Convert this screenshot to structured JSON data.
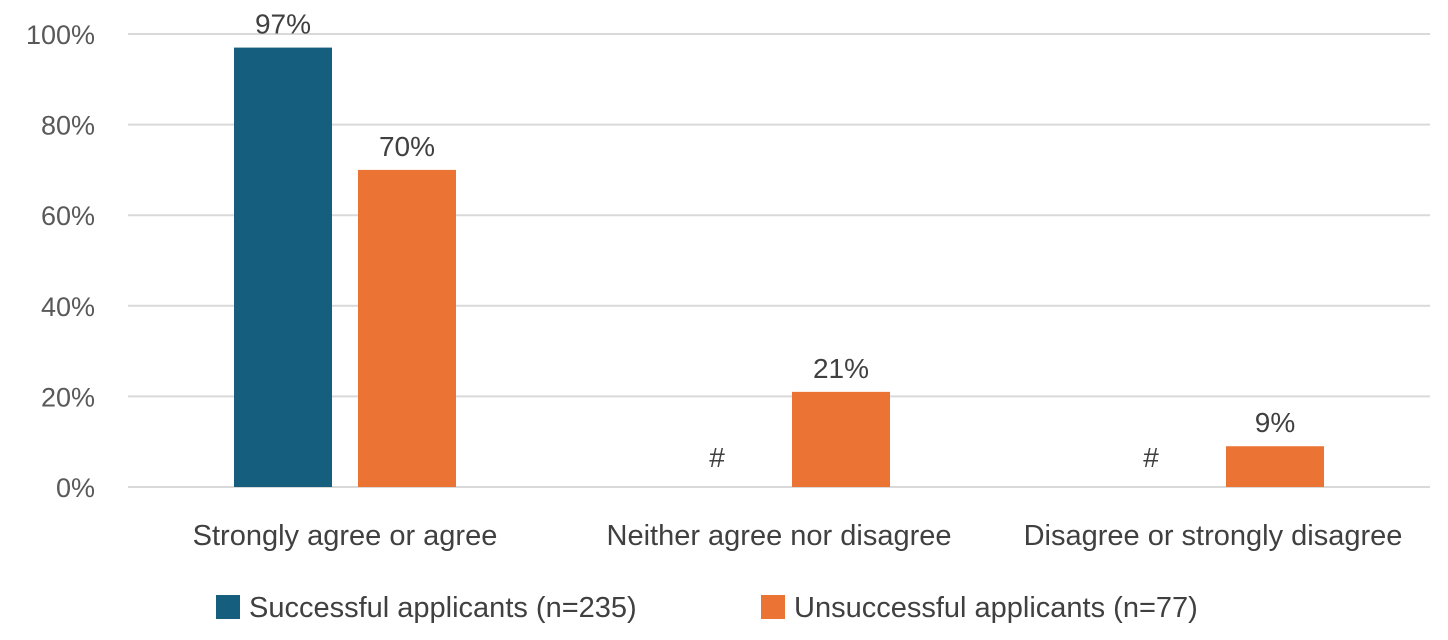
{
  "chart_data": {
    "type": "bar",
    "categories": [
      "Strongly agree or agree",
      "Neither agree nor disagree",
      "Disagree or strongly disagree"
    ],
    "series": [
      {
        "name": "Successful applicants (n=235)",
        "color": "#165e7d",
        "values": [
          97,
          null,
          null
        ],
        "labels": [
          "97%",
          "#",
          "#"
        ]
      },
      {
        "name": "Unsuccessful applicants (n=77)",
        "color": "#eb7333",
        "values": [
          70,
          21,
          9
        ],
        "labels": [
          "70%",
          "21%",
          "9%"
        ]
      }
    ],
    "yticks": [
      "0%",
      "20%",
      "40%",
      "60%",
      "80%",
      "100%"
    ],
    "ylim": [
      0,
      100
    ],
    "grid": true,
    "legend_position": "bottom"
  }
}
